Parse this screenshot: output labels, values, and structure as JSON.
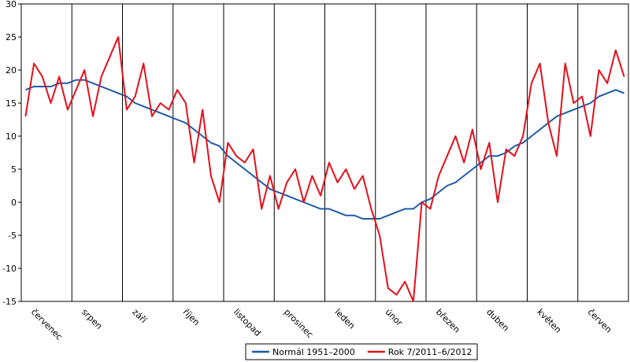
{
  "chart_data": {
    "type": "line",
    "categories": [
      null,
      "červenec",
      null,
      null,
      null,
      null,
      null,
      "srpen",
      null,
      null,
      null,
      null,
      null,
      "září",
      null,
      null,
      null,
      null,
      null,
      "říjen",
      null,
      null,
      null,
      null,
      null,
      "listopad",
      null,
      null,
      null,
      null,
      null,
      "prosinec",
      null,
      null,
      null,
      null,
      null,
      "leden",
      null,
      null,
      null,
      null,
      null,
      "únor",
      null,
      null,
      null,
      null,
      null,
      "březen",
      null,
      null,
      null,
      null,
      null,
      "duben",
      null,
      null,
      null,
      null,
      null,
      "květen",
      null,
      null,
      null,
      null,
      null,
      "červen",
      null,
      null,
      null,
      null
    ],
    "series": [
      {
        "name": "Normál 1951–2000",
        "color": "#1f5aa6",
        "values": [
          17,
          17.5,
          17.5,
          17.5,
          18,
          18,
          18.5,
          18.5,
          18,
          17.5,
          17,
          16.5,
          16,
          15,
          14.5,
          14,
          13.5,
          13,
          12.5,
          12,
          11,
          10,
          9,
          8.5,
          7,
          6,
          5,
          4,
          3,
          2,
          1.5,
          1,
          0.5,
          0,
          -0.5,
          -1,
          -1,
          -1.5,
          -2,
          -2,
          -2.5,
          -2.5,
          -2.5,
          -2,
          -1.5,
          -1,
          -1,
          0,
          0.5,
          1.5,
          2.5,
          3,
          4,
          5,
          6,
          7,
          7,
          7.5,
          8.5,
          9,
          10,
          11,
          12,
          13,
          13.5,
          14,
          14.5,
          15,
          16,
          16.5,
          17,
          16.5
        ]
      },
      {
        "name": "Rok 7/2011–6/2012",
        "color": "#e3101b",
        "values": [
          13,
          21,
          19,
          15,
          19,
          14,
          17,
          20,
          13,
          19,
          22,
          25,
          14,
          16,
          21,
          13,
          15,
          14,
          17,
          15,
          6,
          14,
          4,
          0,
          9,
          7,
          6,
          8,
          -1,
          4,
          -1,
          3,
          5,
          0,
          4,
          1,
          6,
          3,
          5,
          2,
          4,
          -1,
          -5,
          -13,
          -14,
          -12,
          -15,
          0,
          -1,
          4,
          7,
          10,
          6,
          11,
          5,
          9,
          0,
          8,
          7,
          10,
          18,
          21,
          12,
          7,
          21,
          15,
          16,
          10,
          20,
          18,
          23,
          19
        ]
      }
    ],
    "ylim": [
      -15,
      30
    ],
    "yticks": [
      -15,
      -10,
      -5,
      0,
      5,
      10,
      15,
      20,
      25,
      30
    ]
  }
}
